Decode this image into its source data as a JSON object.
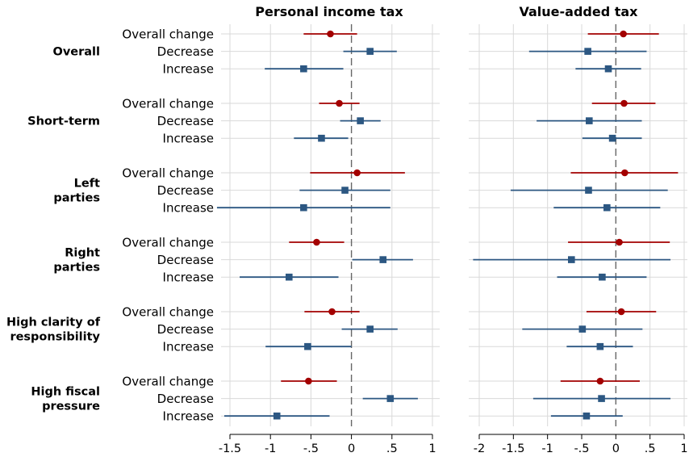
{
  "chart_data": {
    "type": "scatter",
    "subtype": "coefficient-plot",
    "row_labels": [
      "Overall change",
      "Decrease",
      "Increase"
    ],
    "groups": [
      {
        "label_lines": [
          "Overall"
        ]
      },
      {
        "label_lines": [
          "Short-term"
        ]
      },
      {
        "label_lines": [
          "Left",
          "parties"
        ]
      },
      {
        "label_lines": [
          "Right",
          "parties"
        ]
      },
      {
        "label_lines": [
          "High clarity of",
          "responsibility"
        ]
      },
      {
        "label_lines": [
          "High fiscal",
          "pressure"
        ]
      }
    ],
    "colors": {
      "overall": "#a30000",
      "decrease_increase": "#2c5782"
    },
    "panels": [
      {
        "title": "Personal income tax",
        "xlim": [
          -1.5,
          1
        ],
        "ticks": [
          -1.5,
          -1,
          -0.5,
          0,
          0.5,
          1
        ],
        "tick_labels": [
          "-1.5",
          "-1",
          "-.5",
          "0",
          ".5",
          "1"
        ],
        "estimates": [
          [
            {
              "est": -0.26,
              "lo": -0.59,
              "hi": 0.07
            },
            {
              "est": 0.23,
              "lo": -0.1,
              "hi": 0.56
            },
            {
              "est": -0.59,
              "lo": -1.07,
              "hi": -0.1
            }
          ],
          [
            {
              "est": -0.15,
              "lo": -0.4,
              "hi": 0.1
            },
            {
              "est": 0.11,
              "lo": -0.14,
              "hi": 0.36
            },
            {
              "est": -0.37,
              "lo": -0.71,
              "hi": -0.04
            }
          ],
          [
            {
              "est": 0.07,
              "lo": -0.51,
              "hi": 0.66
            },
            {
              "est": -0.08,
              "lo": -0.64,
              "hi": 0.48
            },
            {
              "est": -0.59,
              "lo": -1.66,
              "hi": 0.48
            }
          ],
          [
            {
              "est": -0.43,
              "lo": -0.77,
              "hi": -0.09
            },
            {
              "est": 0.39,
              "lo": 0.01,
              "hi": 0.76
            },
            {
              "est": -0.77,
              "lo": -1.38,
              "hi": -0.16
            }
          ],
          [
            {
              "est": -0.24,
              "lo": -0.58,
              "hi": 0.1
            },
            {
              "est": 0.23,
              "lo": -0.12,
              "hi": 0.57
            },
            {
              "est": -0.54,
              "lo": -1.06,
              "hi": 0.0
            }
          ],
          [
            {
              "est": -0.53,
              "lo": -0.87,
              "hi": -0.18
            },
            {
              "est": 0.48,
              "lo": 0.14,
              "hi": 0.82
            },
            {
              "est": -0.92,
              "lo": -1.57,
              "hi": -0.27
            }
          ]
        ]
      },
      {
        "title": "Value-added tax",
        "xlim": [
          -2,
          1
        ],
        "ticks": [
          -2,
          -1.5,
          -1,
          -0.5,
          0,
          0.5,
          1
        ],
        "tick_labels": [
          "-2",
          "-1.5",
          "-1",
          "-.5",
          "0",
          ".5",
          "1"
        ],
        "estimates": [
          [
            {
              "est": 0.11,
              "lo": -0.41,
              "hi": 0.63
            },
            {
              "est": -0.41,
              "lo": -1.27,
              "hi": 0.45
            },
            {
              "est": -0.11,
              "lo": -0.59,
              "hi": 0.37
            }
          ],
          [
            {
              "est": 0.12,
              "lo": -0.35,
              "hi": 0.58
            },
            {
              "est": -0.39,
              "lo": -1.16,
              "hi": 0.38
            },
            {
              "est": -0.05,
              "lo": -0.49,
              "hi": 0.38
            }
          ],
          [
            {
              "est": 0.13,
              "lo": -0.66,
              "hi": 0.91
            },
            {
              "est": -0.4,
              "lo": -1.54,
              "hi": 0.76
            },
            {
              "est": -0.13,
              "lo": -0.91,
              "hi": 0.65
            }
          ],
          [
            {
              "est": 0.05,
              "lo": -0.7,
              "hi": 0.79
            },
            {
              "est": -0.65,
              "lo": -2.09,
              "hi": 0.8
            },
            {
              "est": -0.2,
              "lo": -0.86,
              "hi": 0.45
            }
          ],
          [
            {
              "est": 0.08,
              "lo": -0.43,
              "hi": 0.59
            },
            {
              "est": -0.49,
              "lo": -1.37,
              "hi": 0.39
            },
            {
              "est": -0.23,
              "lo": -0.72,
              "hi": 0.25
            }
          ],
          [
            {
              "est": -0.23,
              "lo": -0.81,
              "hi": 0.35
            },
            {
              "est": -0.21,
              "lo": -1.21,
              "hi": 0.8
            },
            {
              "est": -0.43,
              "lo": -0.95,
              "hi": 0.1
            }
          ]
        ]
      }
    ]
  }
}
